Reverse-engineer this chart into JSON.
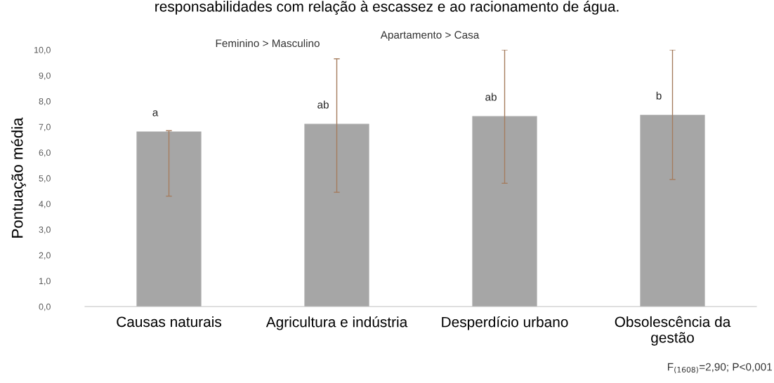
{
  "chart_data": {
    "type": "bar",
    "title": "responsabilidades com relação à escassez e ao racionamento de água.",
    "ylabel": "Pontuação média",
    "categories": [
      "Causas naturais",
      "Agricultura e indústria",
      "Desperdício urbano",
      "Obsolescência da\ngestão"
    ],
    "values": [
      6.8,
      7.1,
      7.4,
      7.45
    ],
    "errors": [
      [
        4.3,
        6.85
      ],
      [
        4.45,
        9.65
      ],
      [
        4.8,
        10.0
      ],
      [
        4.95,
        10.0
      ]
    ],
    "color": "#a6a6a6",
    "ylim": [
      0,
      10
    ],
    "yticks": [
      {
        "value": 0,
        "label": "0,0"
      },
      {
        "value": 1,
        "label": "1,0"
      },
      {
        "value": 2,
        "label": "2,0"
      },
      {
        "value": 3,
        "label": "3,0"
      },
      {
        "value": 4,
        "label": "4,0"
      },
      {
        "value": 5,
        "label": "5,0"
      },
      {
        "value": 6,
        "label": "6,0"
      },
      {
        "value": 7,
        "label": "7,0"
      },
      {
        "value": 8,
        "label": "8,0"
      },
      {
        "value": 9,
        "label": "9,0"
      },
      {
        "value": 10,
        "label": "10,0"
      }
    ],
    "grid": false,
    "value_labels": [
      "a",
      "ab",
      "ab",
      "b"
    ],
    "annotations": [
      "Feminino > Masculino",
      "Apartamento > Casa",
      "F$_{(1608)}$=2,90; P<0,001"
    ]
  }
}
